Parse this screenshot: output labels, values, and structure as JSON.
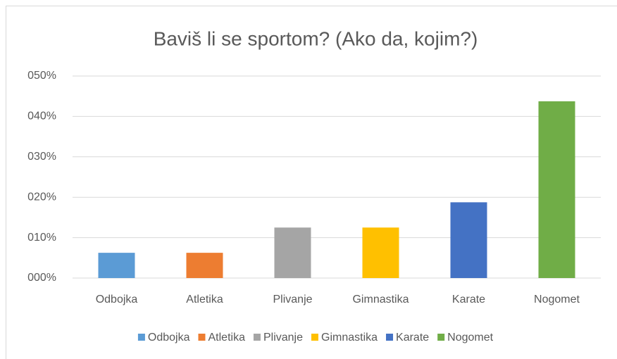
{
  "chart_data": {
    "type": "bar",
    "title": "Baviš li se sportom? (Ako da, kojim?)",
    "categories": [
      "Odbojka",
      "Atletika",
      "Plivanje",
      "Gimnastika",
      "Karate",
      "Nogomet"
    ],
    "values": [
      6.25,
      6.25,
      12.5,
      12.5,
      18.75,
      43.75
    ],
    "colors": [
      "#5b9bd5",
      "#ed7d31",
      "#a5a5a5",
      "#ffc000",
      "#4472c4",
      "#70ad47"
    ],
    "ylim": [
      0,
      50
    ],
    "yticks": [
      {
        "value": 0,
        "label": "000%"
      },
      {
        "value": 10,
        "label": "010%"
      },
      {
        "value": 20,
        "label": "020%"
      },
      {
        "value": 30,
        "label": "030%"
      },
      {
        "value": 40,
        "label": "040%"
      },
      {
        "value": 50,
        "label": "050%"
      }
    ],
    "grid": true,
    "legend": "bottom"
  }
}
